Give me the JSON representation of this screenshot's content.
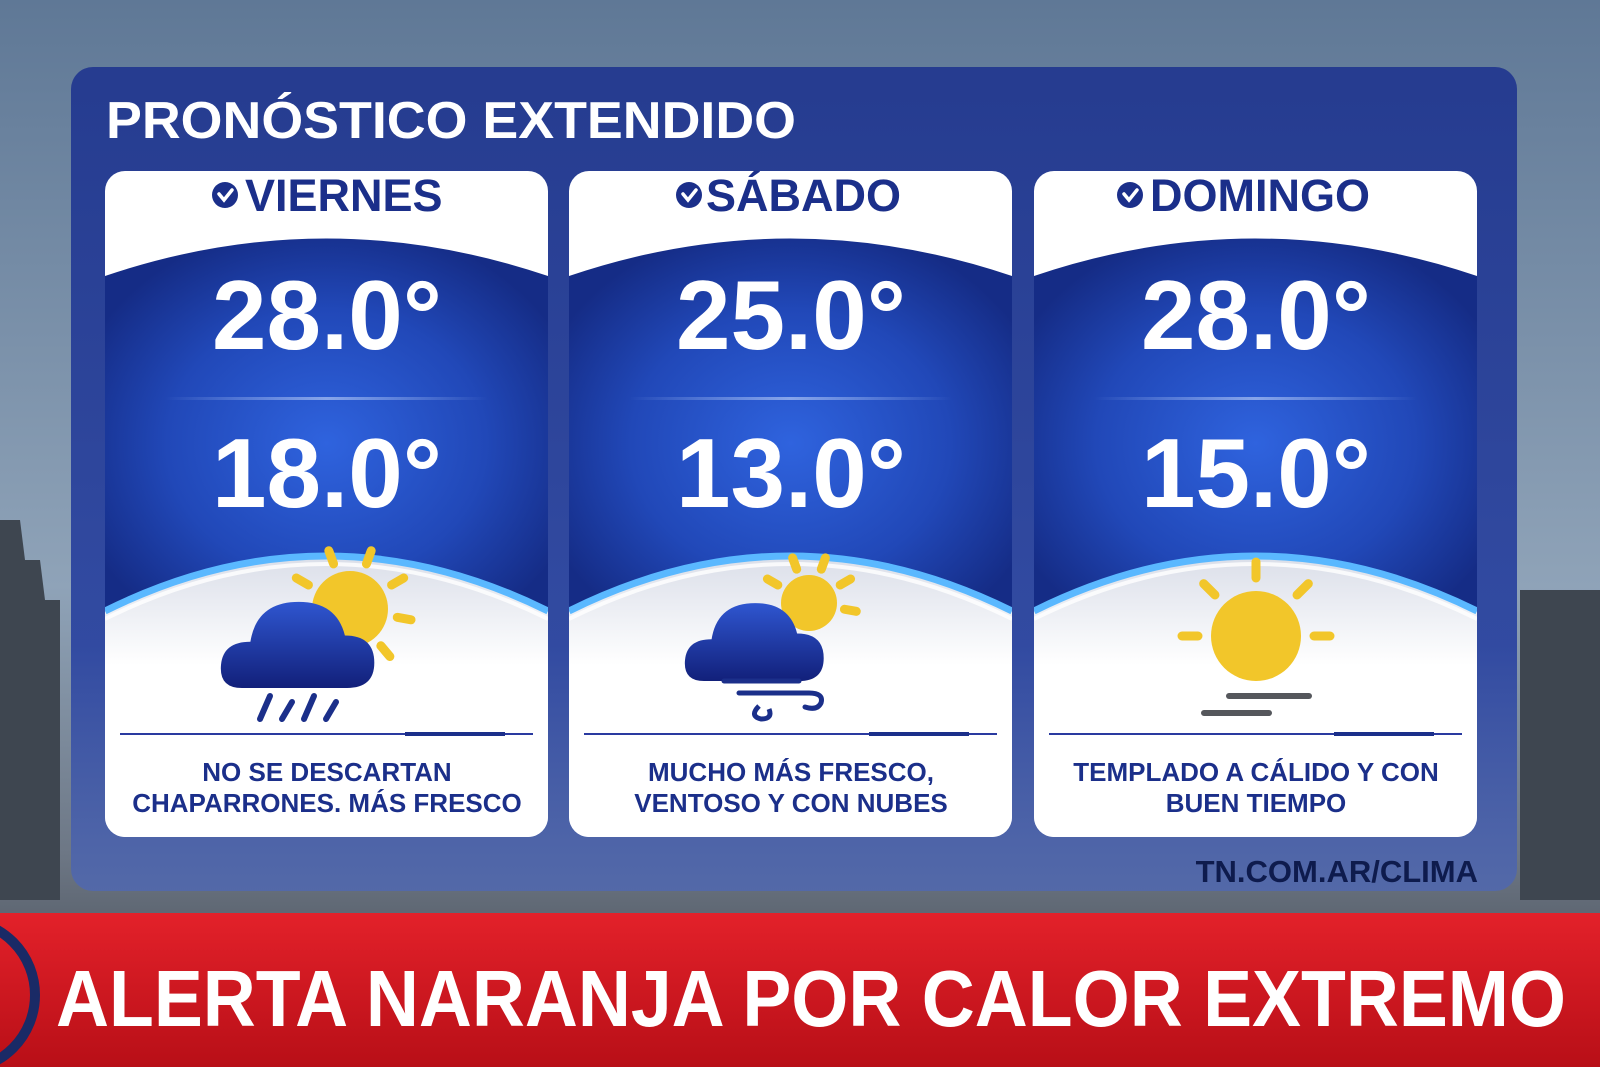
{
  "header": {
    "title": "PRONÓSTICO EXTENDIDO"
  },
  "days": [
    {
      "name": "VIERNES",
      "high": "28.0°",
      "low": "18.0°",
      "description": [
        "NO SE DESCARTAN",
        "CHAPARRONES. MÁS FRESCO"
      ]
    },
    {
      "name": "SÁBADO",
      "high": "25.0°",
      "low": "13.0°",
      "description": [
        "MUCHO MÁS FRESCO,",
        "VENTOSO Y CON NUBES"
      ]
    },
    {
      "name": "DOMINGO",
      "high": "28.0°",
      "low": "15.0°",
      "description": [
        "TEMPLADO A CÁLIDO Y CON",
        "BUEN TIEMPO"
      ]
    }
  ],
  "footer": {
    "url": "TN.COM.AR/CLIMA"
  },
  "banner": {
    "text": "ALERTA NARANJA POR CALOR EXTREMO"
  }
}
